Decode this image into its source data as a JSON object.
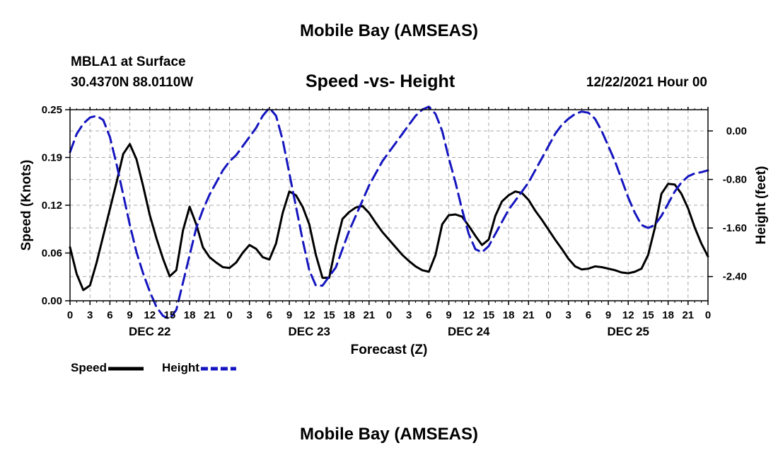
{
  "page": {
    "title_top": "Mobile Bay (AMSEAS)",
    "title_bottom": "Mobile Bay (AMSEAS)",
    "station_line": "MBLA1 at Surface",
    "coords_line": "30.4370N  88.0110W",
    "datetime": "12/22/2021 Hour 00"
  },
  "chart_data": {
    "type": "line",
    "title": "Speed -vs- Height",
    "xlabel": "Forecast (Z)",
    "ylabel": "Speed (Knots)",
    "y2label": "Height (feet)",
    "xlim": [
      0,
      96
    ],
    "ylim": [
      0,
      0.25
    ],
    "y2lim": [
      -2.8,
      0.35
    ],
    "x_tick_labels": [
      "0",
      "3",
      "6",
      "9",
      "12",
      "15",
      "18",
      "21",
      "0",
      "3",
      "6",
      "9",
      "12",
      "15",
      "18",
      "21",
      "0",
      "3",
      "6",
      "9",
      "12",
      "15",
      "18",
      "21",
      "0",
      "3",
      "6",
      "9",
      "12",
      "15",
      "18",
      "21",
      "0"
    ],
    "y_tick_labels": [
      "0.00",
      "0.06",
      "0.12",
      "0.19",
      "0.25"
    ],
    "y_tick_values": [
      0,
      0.0625,
      0.125,
      0.1875,
      0.25
    ],
    "y2_tick_labels": [
      "-2.40",
      "-1.60",
      "-0.80",
      "0.00"
    ],
    "y2_tick_values": [
      -2.4,
      -1.6,
      -0.8,
      0.0
    ],
    "day_labels": [
      {
        "label": "DEC 22",
        "hour": 12
      },
      {
        "label": "DEC 23",
        "hour": 36
      },
      {
        "label": "DEC 24",
        "hour": 60
      },
      {
        "label": "DEC 25",
        "hour": 84
      }
    ],
    "legend": [
      {
        "name": "Speed",
        "color": "#000000",
        "dashed": false
      },
      {
        "name": "Height",
        "color": "#1515c0",
        "dashed": true
      }
    ],
    "series": [
      {
        "name": "Speed",
        "axis": "left",
        "color": "#000000",
        "x": [
          0,
          1,
          2,
          3,
          4,
          5,
          6,
          7,
          8,
          9,
          10,
          11,
          12,
          13,
          14,
          15,
          16,
          17,
          18,
          19,
          20,
          21,
          22,
          23,
          24,
          25,
          26,
          27,
          28,
          29,
          30,
          31,
          32,
          33,
          34,
          35,
          36,
          37,
          38,
          39,
          40,
          41,
          42,
          43,
          44,
          45,
          46,
          47,
          48,
          49,
          50,
          51,
          52,
          53,
          54,
          55,
          56,
          57,
          58,
          59,
          60,
          61,
          62,
          63,
          64,
          65,
          66,
          67,
          68,
          69,
          70,
          71,
          72,
          73,
          74,
          75,
          76,
          77,
          78,
          79,
          80,
          81,
          82,
          83,
          84,
          85,
          86,
          87,
          88,
          89,
          90,
          91,
          92,
          93,
          94,
          95,
          96
        ],
        "values": [
          0.07,
          0.035,
          0.014,
          0.02,
          0.05,
          0.085,
          0.12,
          0.155,
          0.192,
          0.205,
          0.185,
          0.15,
          0.112,
          0.082,
          0.055,
          0.032,
          0.04,
          0.092,
          0.123,
          0.1,
          0.07,
          0.057,
          0.05,
          0.044,
          0.043,
          0.05,
          0.063,
          0.073,
          0.068,
          0.057,
          0.054,
          0.075,
          0.115,
          0.143,
          0.138,
          0.123,
          0.1,
          0.06,
          0.03,
          0.03,
          0.072,
          0.107,
          0.116,
          0.122,
          0.124,
          0.115,
          0.102,
          0.09,
          0.08,
          0.07,
          0.06,
          0.052,
          0.045,
          0.04,
          0.038,
          0.06,
          0.1,
          0.112,
          0.113,
          0.11,
          0.098,
          0.085,
          0.073,
          0.08,
          0.111,
          0.13,
          0.138,
          0.143,
          0.141,
          0.132,
          0.118,
          0.106,
          0.093,
          0.08,
          0.068,
          0.055,
          0.045,
          0.041,
          0.042,
          0.045,
          0.044,
          0.042,
          0.04,
          0.037,
          0.036,
          0.038,
          0.042,
          0.06,
          0.095,
          0.14,
          0.153,
          0.152,
          0.14,
          0.121,
          0.096,
          0.075,
          0.058
        ]
      },
      {
        "name": "Height",
        "axis": "right",
        "color": "#1515c0",
        "x": [
          0,
          1,
          2,
          3,
          4,
          5,
          6,
          7,
          8,
          9,
          10,
          11,
          12,
          13,
          14,
          15,
          16,
          17,
          18,
          19,
          20,
          21,
          22,
          23,
          24,
          25,
          26,
          27,
          28,
          29,
          30,
          31,
          32,
          33,
          34,
          35,
          36,
          37,
          38,
          39,
          40,
          41,
          42,
          43,
          44,
          45,
          46,
          47,
          48,
          49,
          50,
          51,
          52,
          53,
          54,
          55,
          56,
          57,
          58,
          59,
          60,
          61,
          62,
          63,
          64,
          65,
          66,
          67,
          68,
          69,
          70,
          71,
          72,
          73,
          74,
          75,
          76,
          77,
          78,
          79,
          80,
          81,
          82,
          83,
          84,
          85,
          86,
          87,
          88,
          89,
          90,
          91,
          92,
          93,
          94,
          95,
          96
        ],
        "values": [
          -0.35,
          -0.05,
          0.12,
          0.22,
          0.25,
          0.18,
          -0.1,
          -0.55,
          -1.05,
          -1.55,
          -2.0,
          -2.35,
          -2.65,
          -2.9,
          -3.05,
          -3.1,
          -2.95,
          -2.5,
          -2.05,
          -1.6,
          -1.3,
          -1.05,
          -0.85,
          -0.65,
          -0.5,
          -0.4,
          -0.25,
          -0.1,
          0.05,
          0.25,
          0.38,
          0.25,
          -0.15,
          -0.7,
          -1.25,
          -1.8,
          -2.3,
          -2.55,
          -2.55,
          -2.4,
          -2.25,
          -1.95,
          -1.65,
          -1.4,
          -1.15,
          -0.9,
          -0.7,
          -0.5,
          -0.35,
          -0.2,
          -0.05,
          0.1,
          0.25,
          0.35,
          0.4,
          0.28,
          0.0,
          -0.45,
          -0.85,
          -1.3,
          -1.7,
          -1.95,
          -2.0,
          -1.9,
          -1.7,
          -1.5,
          -1.3,
          -1.15,
          -1.0,
          -0.85,
          -0.65,
          -0.45,
          -0.25,
          -0.05,
          0.1,
          0.2,
          0.28,
          0.32,
          0.3,
          0.2,
          0.0,
          -0.25,
          -0.5,
          -0.8,
          -1.1,
          -1.35,
          -1.55,
          -1.6,
          -1.55,
          -1.4,
          -1.2,
          -1.0,
          -0.85,
          -0.75,
          -0.7,
          -0.68,
          -0.65
        ]
      }
    ]
  }
}
